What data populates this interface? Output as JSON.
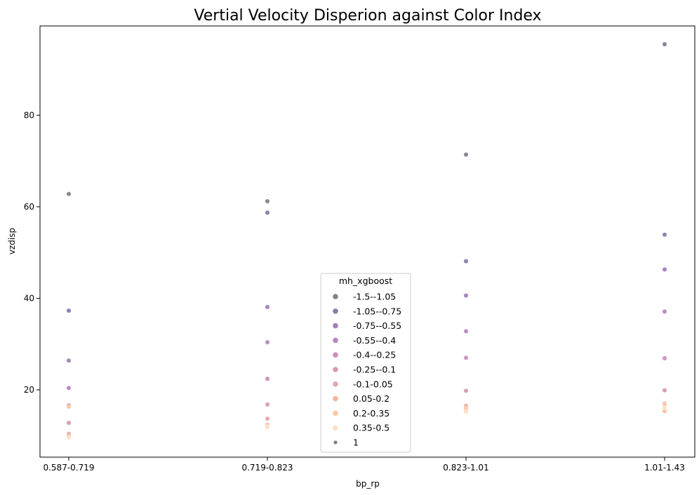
{
  "chart_data": {
    "type": "scatter",
    "title": "Vertial Velocity Disperion against Color Index",
    "xlabel": "bp_rp",
    "ylabel": "vzdisp",
    "categories": [
      "0.587-0.719",
      "0.719-0.823",
      "0.823-1.01",
      "1.01-1.43"
    ],
    "ylim": [
      5.3,
      99.5
    ],
    "yticks": [
      20,
      40,
      60,
      80
    ],
    "grid": false,
    "legend": {
      "title": "mh_xgboost",
      "placement": "lower-center",
      "entries": [
        "-1.5--1.05",
        "-1.05--0.75",
        "-0.75--0.55",
        "-0.55--0.4",
        "-0.4--0.25",
        "-0.25--0.1",
        "-0.1-0.05",
        "0.05-0.2",
        "0.2-0.35",
        "0.35-0.5",
        "1"
      ]
    },
    "series": [
      {
        "name": "-1.5--1.05",
        "color": "#85808e",
        "values": [
          62.8,
          61.2,
          71.4,
          95.5
        ]
      },
      {
        "name": "-1.05--0.75",
        "color": "#8a7bad",
        "values": [
          37.3,
          58.7,
          48.1,
          53.9
        ]
      },
      {
        "name": "-0.75--0.55",
        "color": "#a17fb8",
        "values": [
          26.4,
          38.1,
          40.6,
          46.3
        ]
      },
      {
        "name": "-0.55--0.4",
        "color": "#b688bf",
        "values": [
          20.4,
          30.4,
          32.8,
          37.1
        ]
      },
      {
        "name": "-0.4--0.25",
        "color": "#c98fbb",
        "values": [
          16.6,
          22.4,
          27.0,
          26.9
        ]
      },
      {
        "name": "-0.25--0.1",
        "color": "#d79aae",
        "values": [
          12.8,
          16.8,
          19.8,
          19.9
        ]
      },
      {
        "name": "-0.1-0.05",
        "color": "#e7a5a8",
        "values": [
          10.4,
          13.7,
          16.5,
          17.0
        ]
      },
      {
        "name": "0.05-0.2",
        "color": "#f5b596",
        "values": [
          9.9,
          12.4,
          15.6,
          15.4
        ]
      },
      {
        "name": "0.2-0.35",
        "color": "#f9c8a6",
        "values": [
          16.3,
          12.1,
          16.0,
          16.8
        ]
      },
      {
        "name": "0.35-0.5",
        "color": "#fde0c6",
        "values": [
          9.6,
          11.9,
          15.2,
          16.0
        ]
      },
      {
        "name": "1",
        "color": "#808080",
        "values": []
      }
    ]
  }
}
